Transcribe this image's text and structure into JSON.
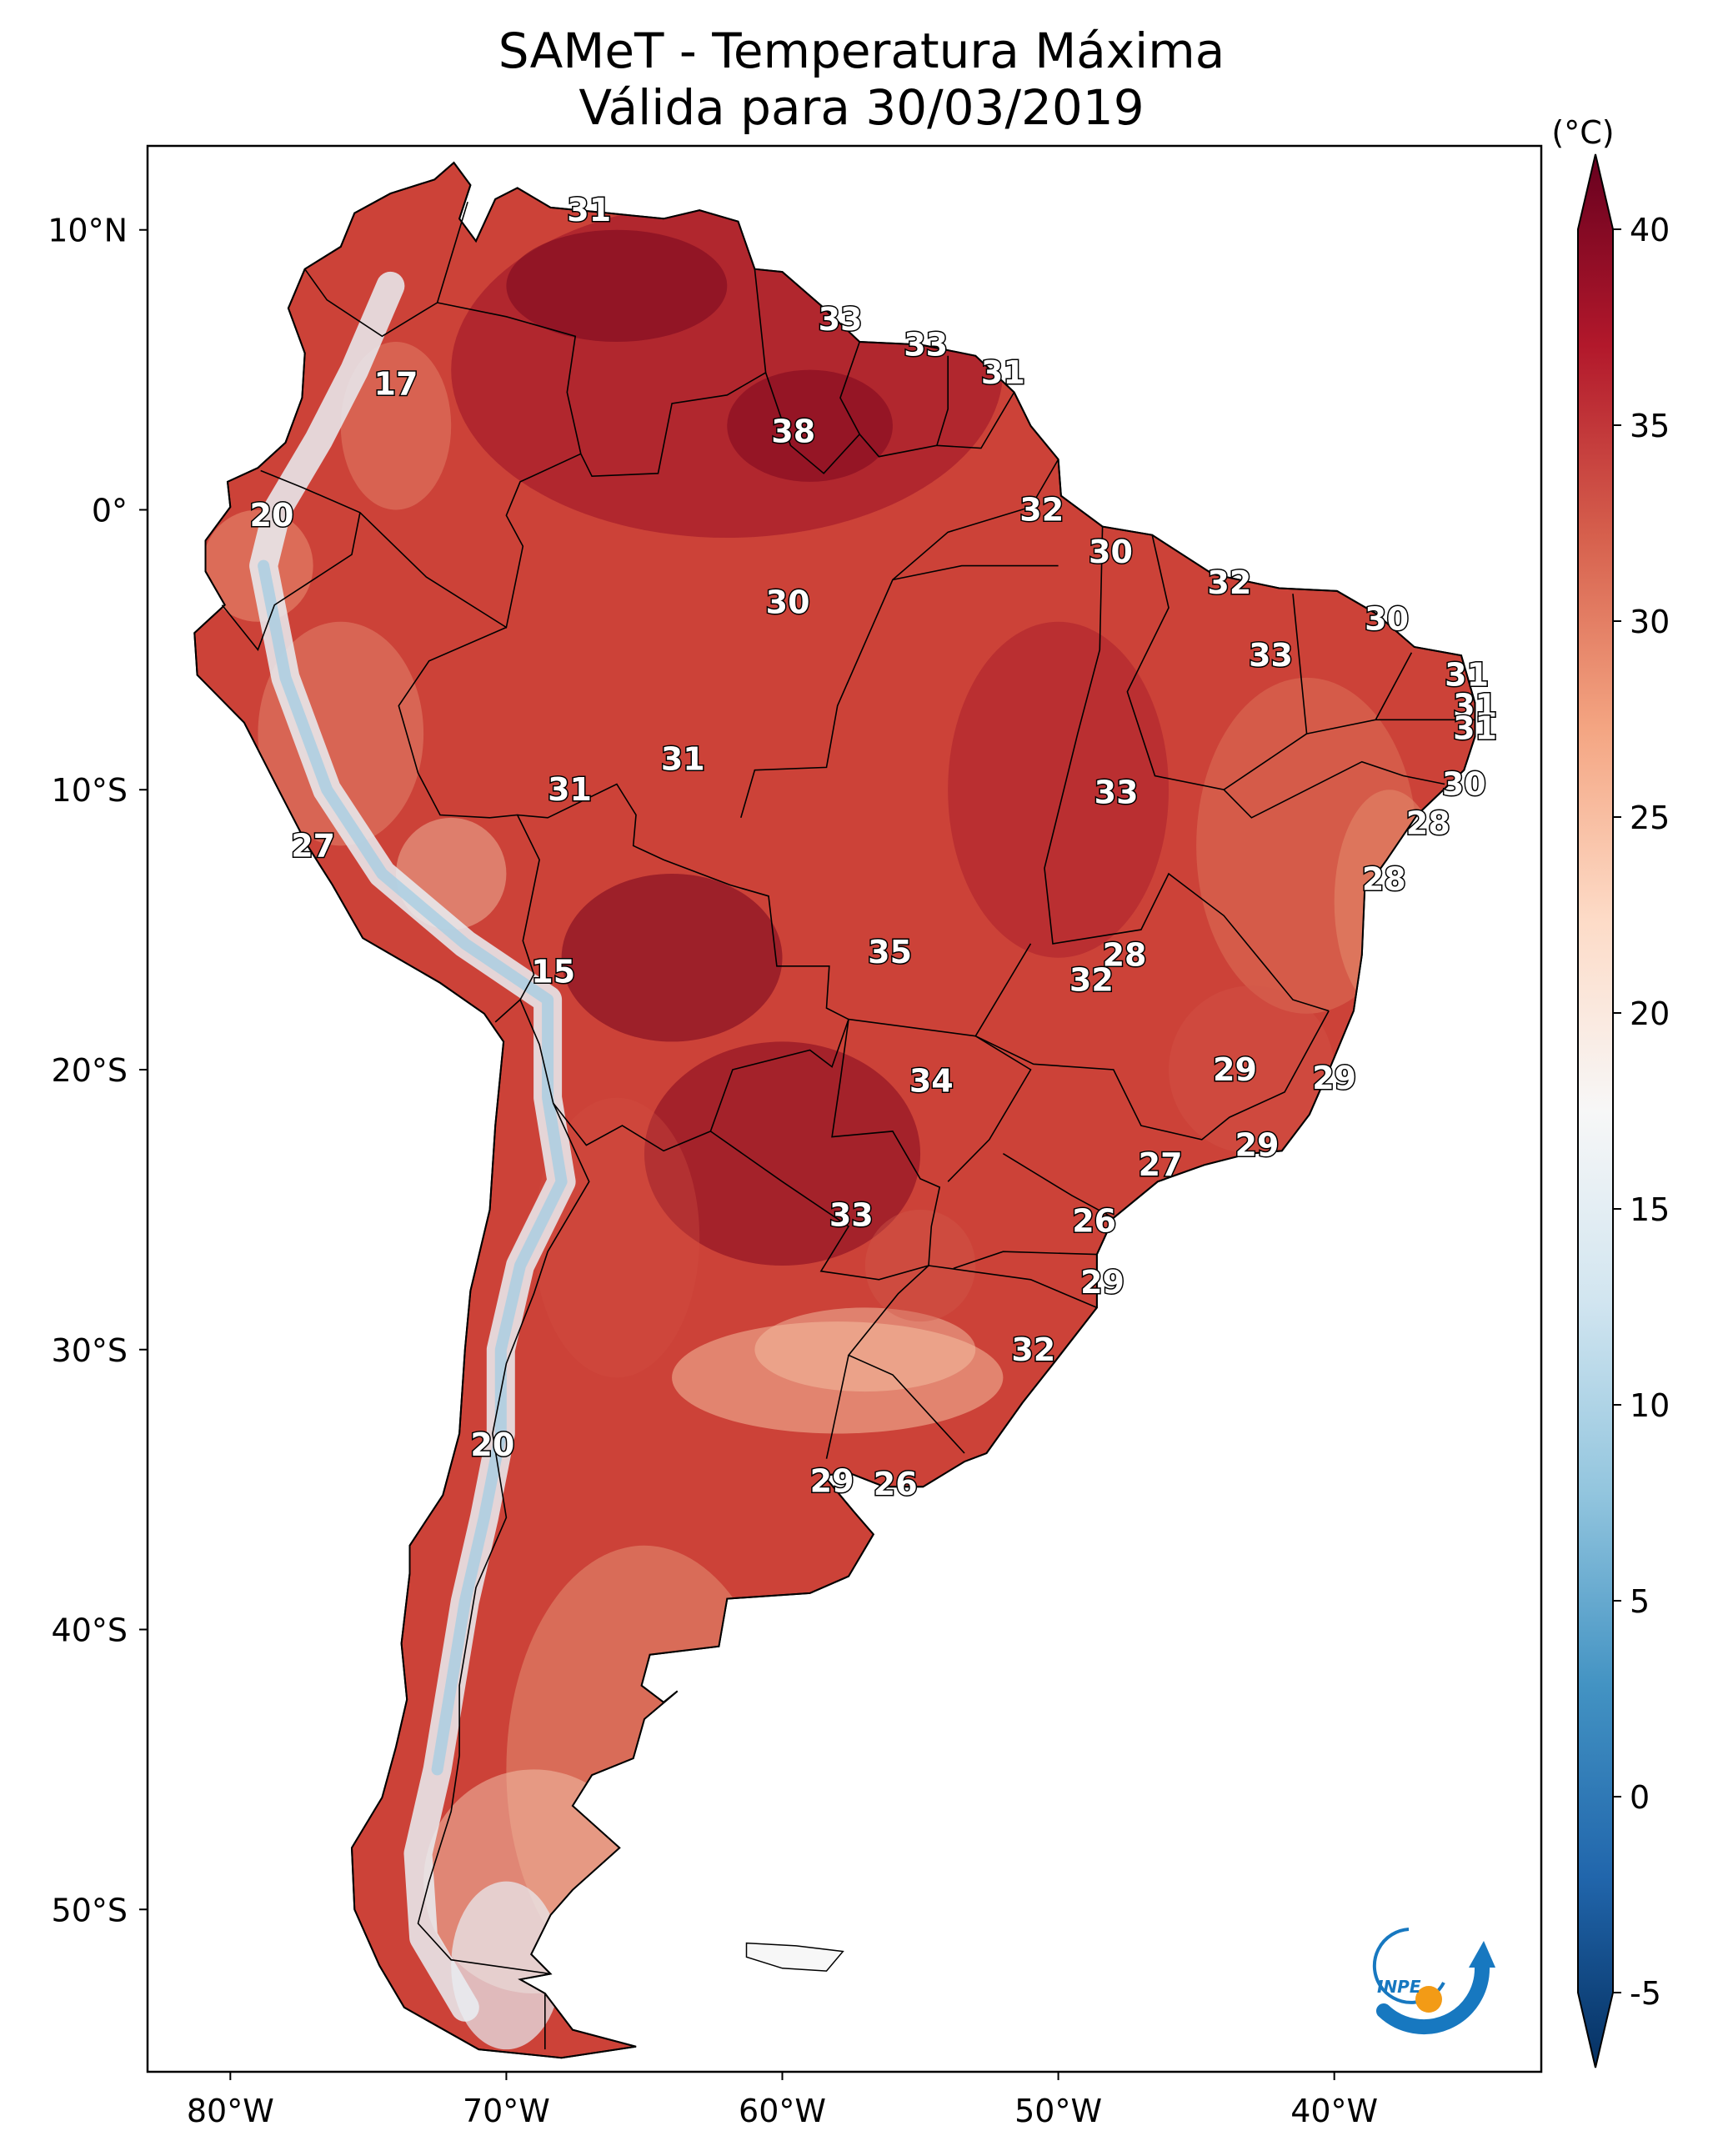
{
  "title": {
    "line1": "SAMeT - Temperatura Máxima",
    "line2": "Válida para 30/03/2019"
  },
  "colorbar": {
    "unit": "(°C)",
    "ticks": [
      "40",
      "35",
      "30",
      "25",
      "20",
      "15",
      "10",
      "5",
      "0",
      "-5"
    ],
    "range": [
      -7,
      41
    ],
    "colors": [
      "#053061",
      "#2166ac",
      "#4393c3",
      "#92c5de",
      "#d1e5f0",
      "#f7f7f7",
      "#fddbc7",
      "#f4a582",
      "#d6604d",
      "#b2182b",
      "#67001f"
    ]
  },
  "axes": {
    "lat_ticks": [
      "10°N",
      "0°",
      "10°S",
      "20°S",
      "30°S",
      "40°S",
      "50°S"
    ],
    "lon_ticks": [
      "80°W",
      "70°W",
      "60°W",
      "50°W",
      "40°W"
    ]
  },
  "labels": [
    {
      "text": "31",
      "lon": -67.0,
      "lat": 10.7
    },
    {
      "text": "17",
      "lon": -74.0,
      "lat": 4.5
    },
    {
      "text": "33",
      "lon": -57.9,
      "lat": 6.8
    },
    {
      "text": "33",
      "lon": -54.8,
      "lat": 5.9
    },
    {
      "text": "31",
      "lon": -52.0,
      "lat": 4.9
    },
    {
      "text": "38",
      "lon": -59.6,
      "lat": 2.8
    },
    {
      "text": "20",
      "lon": -78.5,
      "lat": -0.2
    },
    {
      "text": "32",
      "lon": -50.6,
      "lat": 0.0
    },
    {
      "text": "30",
      "lon": -48.1,
      "lat": -1.5
    },
    {
      "text": "30",
      "lon": -59.8,
      "lat": -3.3
    },
    {
      "text": "32",
      "lon": -43.8,
      "lat": -2.6
    },
    {
      "text": "30",
      "lon": -38.1,
      "lat": -3.9
    },
    {
      "text": "33",
      "lon": -42.3,
      "lat": -5.2
    },
    {
      "text": "31",
      "lon": -35.2,
      "lat": -5.9
    },
    {
      "text": "31",
      "lon": -34.9,
      "lat": -7.0
    },
    {
      "text": "31",
      "lon": -34.9,
      "lat": -7.8
    },
    {
      "text": "31",
      "lon": -63.6,
      "lat": -8.9
    },
    {
      "text": "31",
      "lon": -67.7,
      "lat": -10.0
    },
    {
      "text": "33",
      "lon": -47.9,
      "lat": -10.1
    },
    {
      "text": "30",
      "lon": -35.3,
      "lat": -9.8
    },
    {
      "text": "28",
      "lon": -36.6,
      "lat": -11.2
    },
    {
      "text": "27",
      "lon": -77.0,
      "lat": -12.0
    },
    {
      "text": "28",
      "lon": -38.2,
      "lat": -13.2
    },
    {
      "text": "35",
      "lon": -56.1,
      "lat": -15.8
    },
    {
      "text": "28",
      "lon": -47.6,
      "lat": -15.9
    },
    {
      "text": "15",
      "lon": -68.3,
      "lat": -16.5
    },
    {
      "text": "32",
      "lon": -48.8,
      "lat": -16.8
    },
    {
      "text": "29",
      "lon": -43.6,
      "lat": -20.0
    },
    {
      "text": "34",
      "lon": -54.6,
      "lat": -20.4
    },
    {
      "text": "29",
      "lon": -40.0,
      "lat": -20.3
    },
    {
      "text": "29",
      "lon": -42.8,
      "lat": -22.7
    },
    {
      "text": "27",
      "lon": -46.3,
      "lat": -23.4
    },
    {
      "text": "33",
      "lon": -57.5,
      "lat": -25.2
    },
    {
      "text": "26",
      "lon": -48.7,
      "lat": -25.4
    },
    {
      "text": "29",
      "lon": -48.4,
      "lat": -27.6
    },
    {
      "text": "32",
      "lon": -50.9,
      "lat": -30.0
    },
    {
      "text": "20",
      "lon": -70.5,
      "lat": -33.4
    },
    {
      "text": "29",
      "lon": -58.2,
      "lat": -34.7
    },
    {
      "text": "26",
      "lon": -55.9,
      "lat": -34.8
    }
  ],
  "logo": {
    "text": "INPE"
  }
}
